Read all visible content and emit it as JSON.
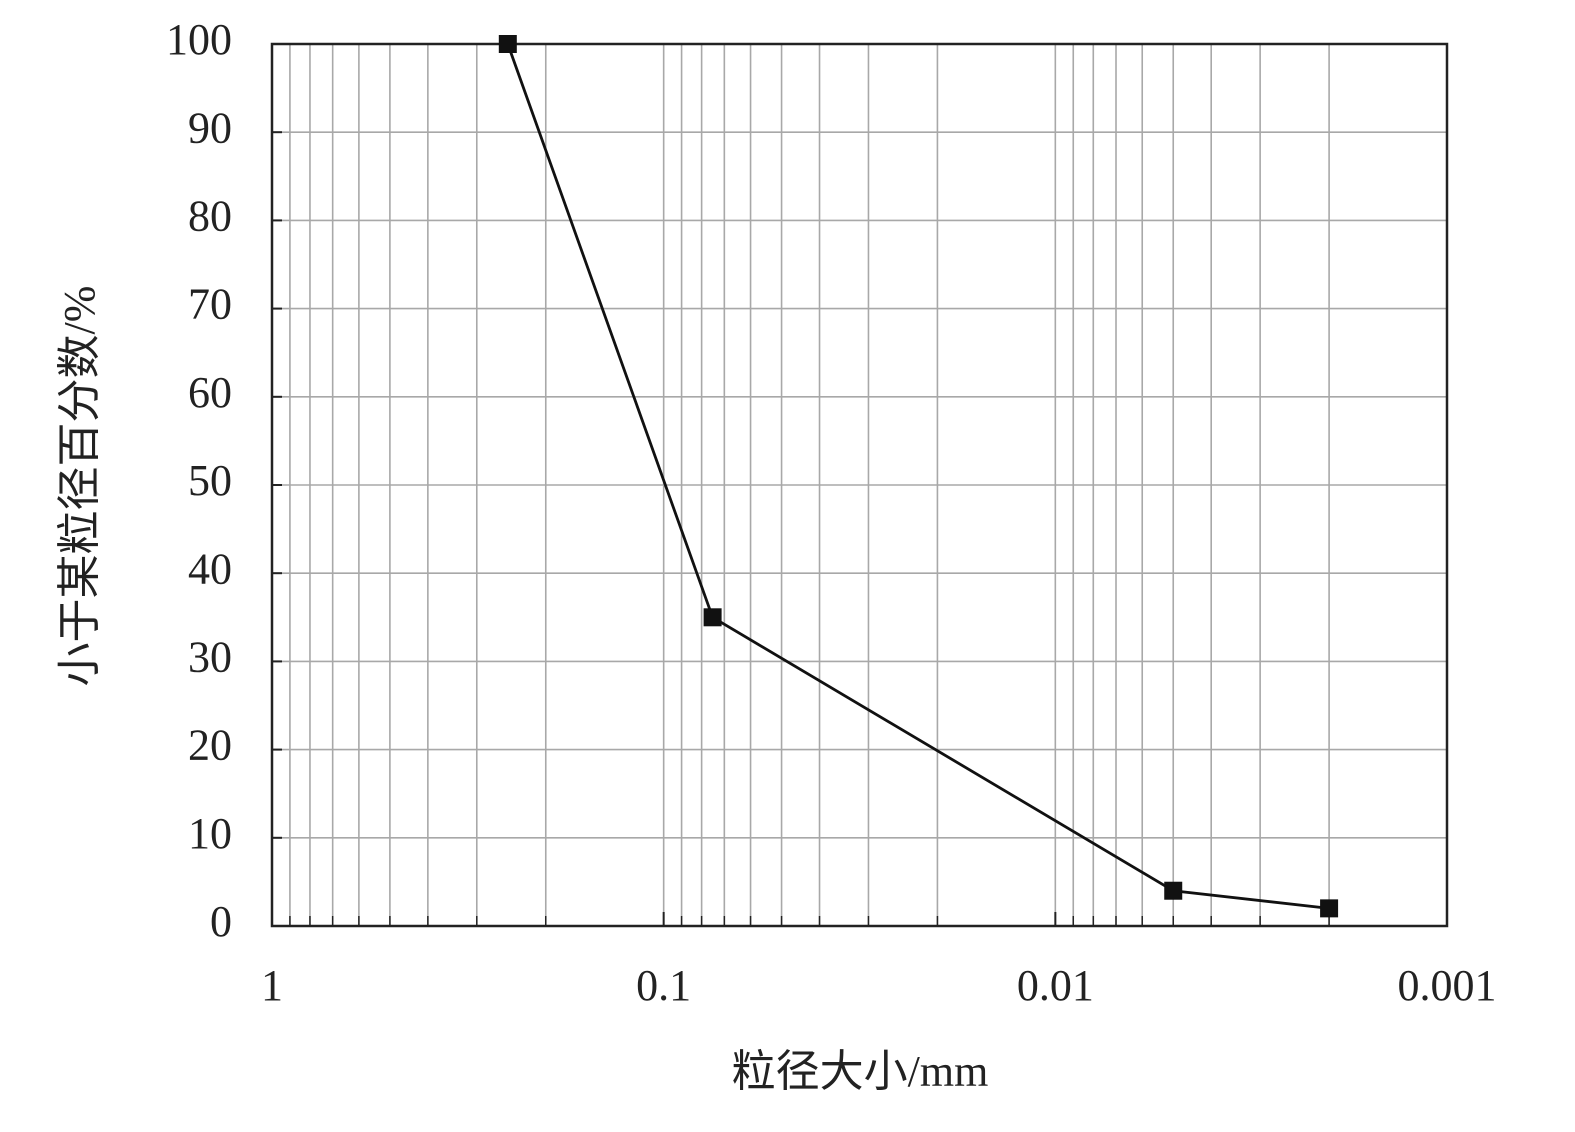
{
  "chart_data": {
    "type": "line",
    "x_label": "粒径大小/mm",
    "y_label": "小于某粒径百分数/%",
    "x": [
      0.25,
      0.075,
      0.005,
      0.002
    ],
    "values": [
      100,
      35,
      4,
      2
    ],
    "color": "#111111",
    "xscale": "log",
    "xlim": [
      1,
      0.001
    ],
    "xticks": [
      1,
      0.1,
      0.01,
      0.001
    ],
    "ylim": [
      0,
      100
    ],
    "yticks": [
      0,
      10,
      20,
      30,
      40,
      50,
      60,
      70,
      80,
      90,
      100
    ],
    "grid": true,
    "minor_grid": true
  }
}
